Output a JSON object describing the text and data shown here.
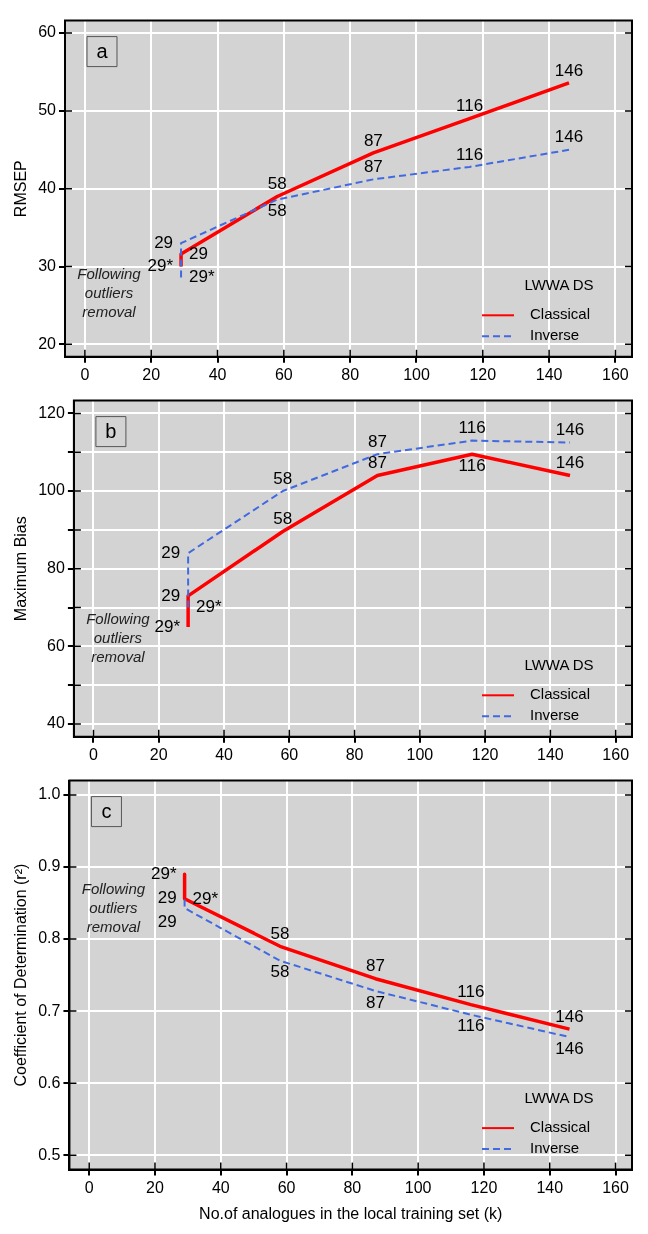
{
  "chart_data": [
    {
      "type": "line",
      "ylabel": "RMSEP",
      "legend": "bottom right",
      "legend_title": "LWWA DS",
      "grid": true,
      "marker": "none",
      "xlim": [
        -6,
        165
      ],
      "xticks": [
        0,
        20,
        40,
        60,
        80,
        100,
        120,
        140,
        160
      ],
      "ylim": [
        18.4,
        61.6
      ],
      "yticks": [
        20,
        30,
        40,
        50,
        60
      ],
      "annotations": [
        "a",
        "Following outliers removal",
        {
          "text": "29*",
          "x": 29,
          "y": 30
        },
        {
          "text": "29",
          "x": 29,
          "y": 31.6
        },
        {
          "text": "58",
          "x": 58,
          "y": 39
        },
        {
          "text": "87",
          "x": 87,
          "y": 44.6
        },
        {
          "text": "116",
          "x": 116,
          "y": 49
        },
        {
          "text": "146",
          "x": 146,
          "y": 53.6
        },
        {
          "text": "29*",
          "x": 29,
          "y": 28.6
        },
        {
          "text": "29",
          "x": 29,
          "y": 33
        },
        {
          "text": "58",
          "x": 58,
          "y": 38.6
        },
        {
          "text": "87",
          "x": 87,
          "y": 41.2
        },
        {
          "text": "116",
          "x": 116,
          "y": 42.8
        },
        {
          "text": "146",
          "x": 146,
          "y": 45
        }
      ],
      "series": [
        {
          "name": "Classical",
          "color": "#ff0000",
          "line_style": "solid",
          "x": [
            29,
            29,
            58,
            87,
            116,
            146
          ],
          "values": [
            30,
            31.6,
            39,
            44.6,
            49,
            53.6
          ]
        },
        {
          "name": "Inverse",
          "color": "#4169e1",
          "line_style": "dashed",
          "x": [
            29,
            29,
            58,
            87,
            116,
            146
          ],
          "values": [
            28.6,
            33,
            38.6,
            41.2,
            42.8,
            45
          ]
        }
      ]
    },
    {
      "type": "line",
      "ylabel": "Maximum Bias",
      "legend": "bottom right",
      "legend_title": "LWWA DS",
      "grid": true,
      "marker": "none",
      "xlim": [
        -6,
        165
      ],
      "xticks": [
        0,
        20,
        40,
        60,
        80,
        100,
        120,
        140,
        160
      ],
      "ylim": [
        36.7,
        123.3
      ],
      "yticks": [
        40,
        {
          "value": 50,
          "label": null
        },
        60,
        {
          "value": 70,
          "label": null
        },
        80,
        {
          "value": 90,
          "label": null
        },
        100,
        {
          "value": 110,
          "label": null
        },
        120
      ],
      "annotations": [
        "b",
        "Following outliers removal",
        {
          "text": "29*",
          "x": 29,
          "y": 65
        },
        {
          "text": "29",
          "x": 29,
          "y": 73
        },
        {
          "text": "58",
          "x": 58,
          "y": 89.6
        },
        {
          "text": "87",
          "x": 87,
          "y": 104
        },
        {
          "text": "116",
          "x": 116,
          "y": 109.5
        },
        {
          "text": "146",
          "x": 146,
          "y": 104
        },
        {
          "text": "29*",
          "x": 29,
          "y": 70
        },
        {
          "text": "29",
          "x": 29,
          "y": 84
        },
        {
          "text": "58",
          "x": 58,
          "y": 100
        },
        {
          "text": "87",
          "x": 87,
          "y": 109.5
        },
        {
          "text": "116",
          "x": 116,
          "y": 113
        },
        {
          "text": "146",
          "x": 146,
          "y": 112.5
        }
      ],
      "series": [
        {
          "name": "Classical",
          "color": "#ff0000",
          "line_style": "solid",
          "x": [
            29,
            29,
            58,
            87,
            116,
            146
          ],
          "values": [
            65,
            73,
            89.6,
            104,
            109.5,
            104
          ]
        },
        {
          "name": "Inverse",
          "color": "#4169e1",
          "line_style": "dashed",
          "x": [
            29,
            29,
            58,
            87,
            116,
            146
          ],
          "values": [
            70,
            84,
            100,
            109.5,
            113,
            112.5
          ]
        }
      ]
    },
    {
      "type": "line",
      "ylabel": "Coefficient of Determination (r²)",
      "xlabel": "No.of analogues in the local training set (k)",
      "legend": "bottom right",
      "legend_title": "LWWA DS",
      "grid": true,
      "marker": "none",
      "xlim": [
        -6,
        165
      ],
      "xticks": [
        0,
        20,
        40,
        60,
        80,
        100,
        120,
        140,
        160
      ],
      "ylim": [
        0.48,
        1.02
      ],
      "yticks": [
        {
          "value": 0.5,
          "label": "0.5"
        },
        {
          "value": 0.6,
          "label": "0.6"
        },
        {
          "value": 0.7,
          "label": "0.7"
        },
        {
          "value": 0.8,
          "label": "0.8"
        },
        {
          "value": 0.9,
          "label": "0.9"
        },
        {
          "value": 1.0,
          "label": "1.0"
        }
      ],
      "annotations": [
        "c",
        "Following outliers removal",
        {
          "text": "29*",
          "x": 29,
          "y": 0.89
        },
        {
          "text": "29",
          "x": 29,
          "y": 0.856
        },
        {
          "text": "58",
          "x": 58,
          "y": 0.79
        },
        {
          "text": "87",
          "x": 87,
          "y": 0.745
        },
        {
          "text": "116",
          "x": 116,
          "y": 0.709
        },
        {
          "text": "146",
          "x": 146,
          "y": 0.675
        },
        {
          "text": "29*",
          "x": 29,
          "y": 0.855
        },
        {
          "text": "29",
          "x": 29,
          "y": 0.843
        },
        {
          "text": "58",
          "x": 58,
          "y": 0.77
        },
        {
          "text": "87",
          "x": 87,
          "y": 0.728
        },
        {
          "text": "116",
          "x": 116,
          "y": 0.695
        },
        {
          "text": "146",
          "x": 146,
          "y": 0.664
        }
      ],
      "series": [
        {
          "name": "Classical",
          "color": "#ff0000",
          "line_style": "solid",
          "x": [
            29,
            29,
            58,
            87,
            116,
            146
          ],
          "values": [
            0.89,
            0.856,
            0.79,
            0.745,
            0.709,
            0.675
          ]
        },
        {
          "name": "Inverse",
          "color": "#4169e1",
          "line_style": "dashed",
          "x": [
            29,
            29,
            58,
            87,
            116,
            146
          ],
          "values": [
            0.855,
            0.843,
            0.77,
            0.728,
            0.695,
            0.664
          ]
        }
      ]
    }
  ]
}
